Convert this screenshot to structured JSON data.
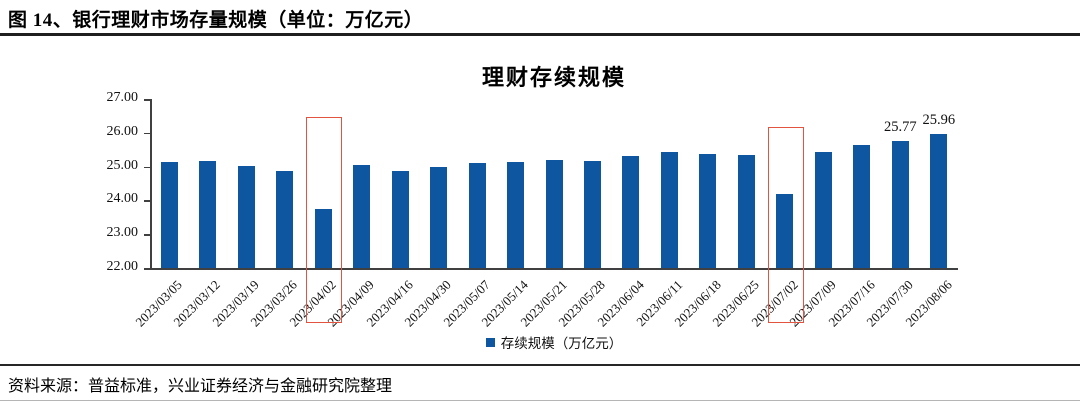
{
  "figure": {
    "header_title": "图 14、银行理财市场存量规模（单位：万亿元）",
    "source_note": "资料来源：普益标准，兴业证券经济与金融研究院整理"
  },
  "colors": {
    "bar": "#0e57a0",
    "highlight_box": "#e25440",
    "axis": "#404040",
    "header_rule": "#1f1f1f"
  },
  "chart_data": {
    "type": "bar",
    "title": "理财存续规模",
    "legend": [
      {
        "label": "存续规模（万亿元）",
        "marker_color": "#0e57a0"
      }
    ],
    "legend_position": "bottom-center",
    "grid": false,
    "xlabel": "",
    "ylabel": "",
    "ylim": [
      22.0,
      27.0
    ],
    "ytick_labels": [
      "27.00",
      "26.00",
      "25.00",
      "24.00",
      "23.00",
      "22.00"
    ],
    "ytick_values": [
      27,
      26,
      25,
      24,
      23,
      22
    ],
    "categories": [
      "2023/03/05",
      "2023/03/12",
      "2023/03/19",
      "2023/03/26",
      "2023/04/02",
      "2023/04/09",
      "2023/04/16",
      "2023/04/30",
      "2023/05/07",
      "2023/05/14",
      "2023/05/21",
      "2023/05/28",
      "2023/06/04",
      "2023/06/11",
      "2023/06/18",
      "2023/06/25",
      "2023/07/02",
      "2023/07/09",
      "2023/07/16",
      "2023/07/30",
      "2023/08/06"
    ],
    "values": [
      25.14,
      25.17,
      25.01,
      24.86,
      23.74,
      25.06,
      24.88,
      24.98,
      25.12,
      25.15,
      25.21,
      25.17,
      25.31,
      25.43,
      25.38,
      25.33,
      24.2,
      25.42,
      25.64,
      25.77,
      25.96
    ],
    "bar_value_labels": [
      {
        "category": "2023/07/30",
        "label": "25.77"
      },
      {
        "category": "2023/08/06",
        "label": "25.96"
      }
    ],
    "highlights": [
      {
        "category": "2023/04/02",
        "box_top_value": 26.48
      },
      {
        "category": "2023/07/02",
        "box_top_value": 26.16
      }
    ]
  }
}
